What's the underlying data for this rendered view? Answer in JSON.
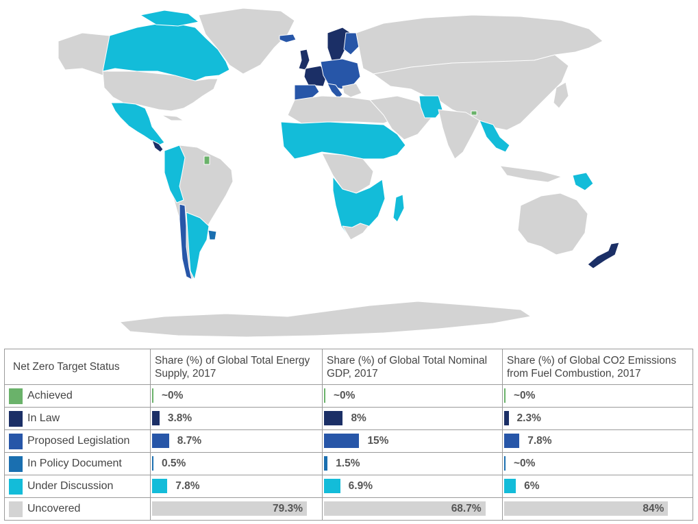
{
  "colors": {
    "achieved": "#6ab26a",
    "in_law": "#1b2f66",
    "proposed_legislation": "#2756a8",
    "in_policy_document": "#1a6fb0",
    "under_discussion": "#13bcd9",
    "uncovered": "#d3d3d3"
  },
  "map_legend_ref": "Net Zero Target Status by country",
  "table": {
    "headers": [
      "Net Zero Target Status",
      "Share (%) of Global Total Energy Supply, 2017",
      "Share (%) of Global Total Nominal GDP, 2017",
      "Share (%) of Global CO2 Emissions from Fuel Combustion, 2017"
    ],
    "rows": [
      {
        "status": "Achieved",
        "color_key": "achieved",
        "values": [
          {
            "label": "~0%",
            "pct": 0.3
          },
          {
            "label": "~0%",
            "pct": 0.3
          },
          {
            "label": "~0%",
            "pct": 0.3
          }
        ]
      },
      {
        "status": "In Law",
        "color_key": "in_law",
        "values": [
          {
            "label": "3.8%",
            "pct": 3.8
          },
          {
            "label": "8%",
            "pct": 8
          },
          {
            "label": "2.3%",
            "pct": 2.3
          }
        ]
      },
      {
        "status": "Proposed Legislation",
        "color_key": "proposed_legislation",
        "values": [
          {
            "label": "8.7%",
            "pct": 8.7
          },
          {
            "label": "15%",
            "pct": 15
          },
          {
            "label": "7.8%",
            "pct": 7.8
          }
        ]
      },
      {
        "status": "In Policy Document",
        "color_key": "in_policy_document",
        "values": [
          {
            "label": "0.5%",
            "pct": 0.5
          },
          {
            "label": "1.5%",
            "pct": 1.5
          },
          {
            "label": "~0%",
            "pct": 0.3
          }
        ]
      },
      {
        "status": "Under Discussion",
        "color_key": "under_discussion",
        "values": [
          {
            "label": "7.8%",
            "pct": 7.8
          },
          {
            "label": "6.9%",
            "pct": 6.9
          },
          {
            "label": "6%",
            "pct": 6
          }
        ]
      },
      {
        "status": "Uncovered",
        "color_key": "uncovered",
        "values": [
          {
            "label": "79.3%",
            "pct": 79.3
          },
          {
            "label": "68.7%",
            "pct": 68.7
          },
          {
            "label": "84%",
            "pct": 84
          }
        ]
      }
    ]
  }
}
